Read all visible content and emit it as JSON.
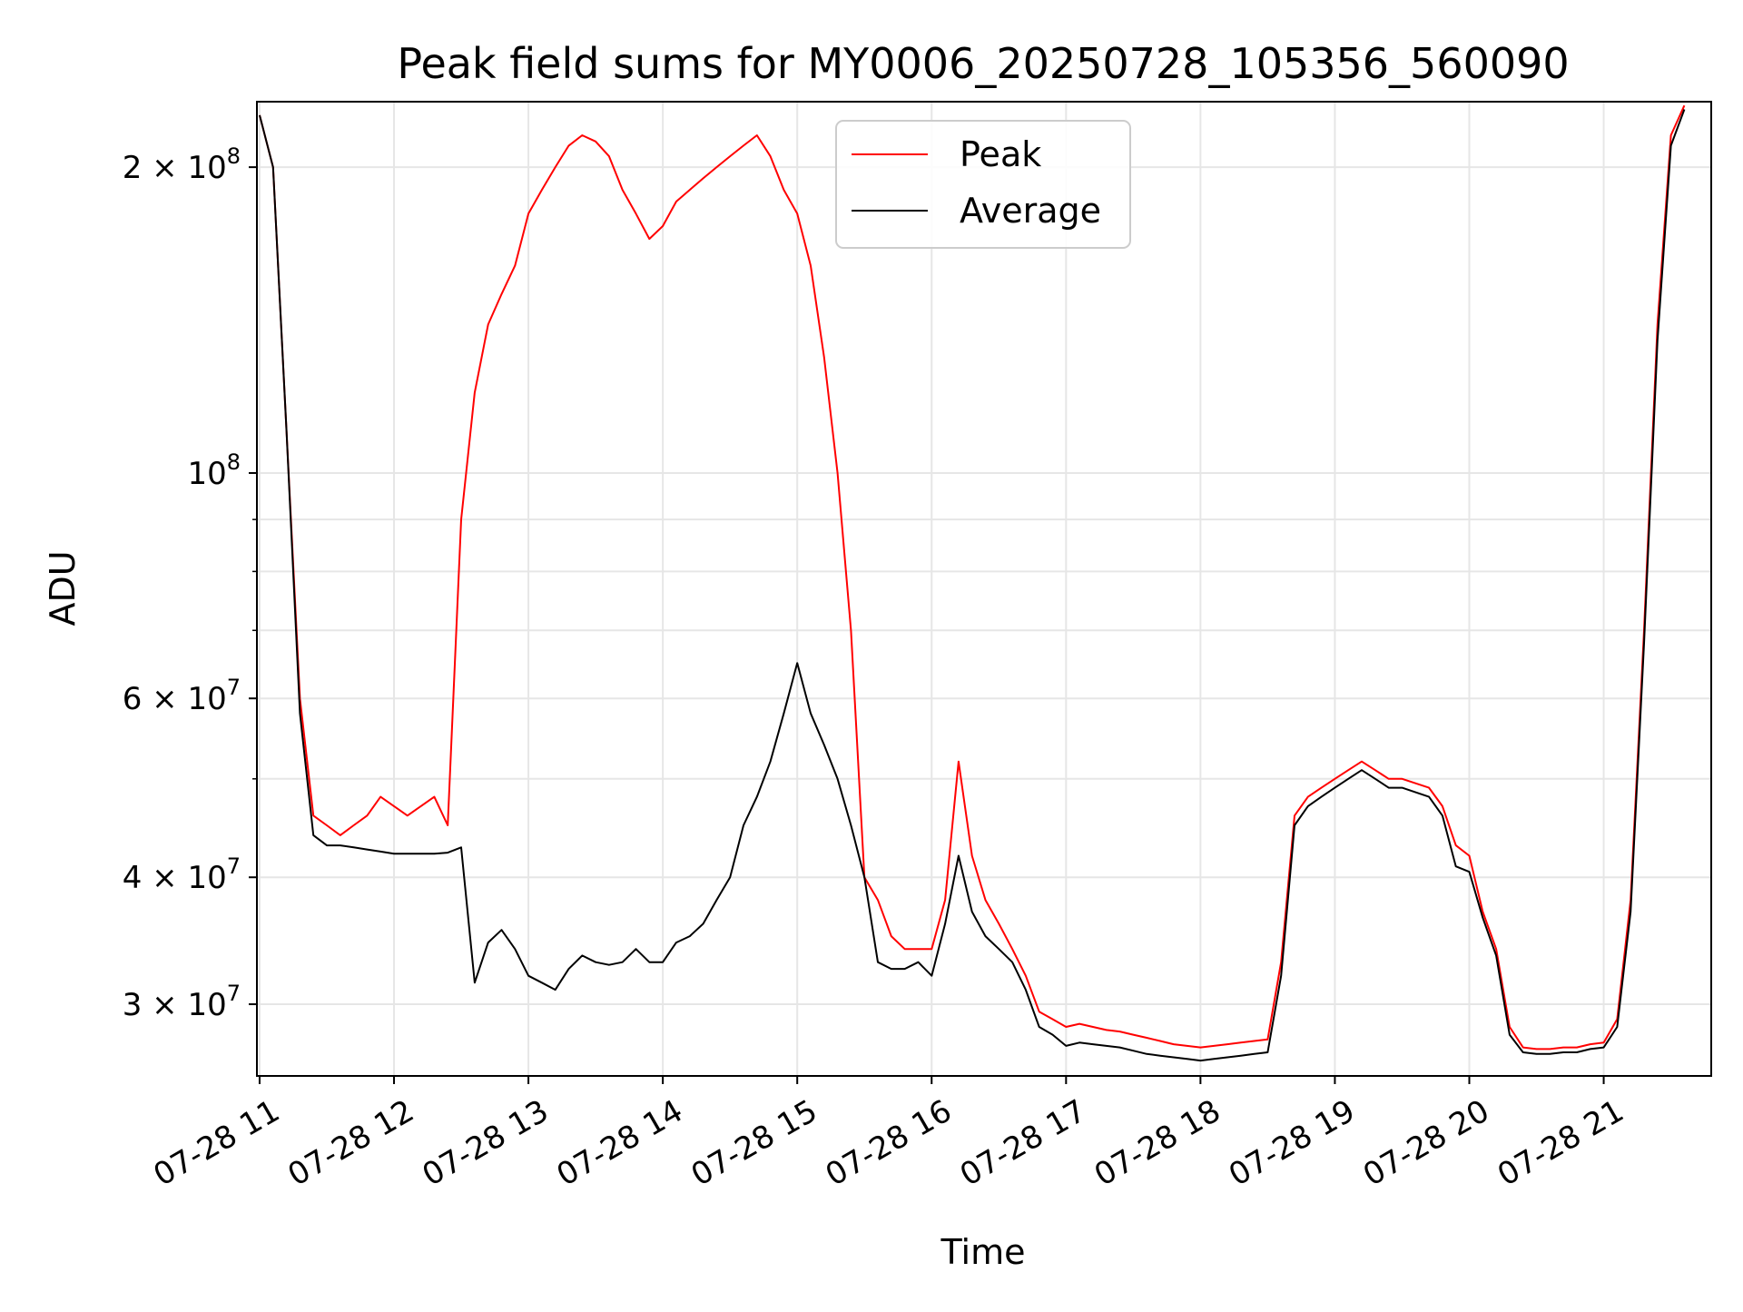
{
  "chart_data": {
    "type": "line",
    "title": "Peak field sums for MY0006_20250728_105356_560090",
    "xlabel": "Time",
    "ylabel": "ADU",
    "yscale": "log",
    "grid": true,
    "legend_position": "upper center",
    "xlim": [
      10.98,
      21.8
    ],
    "ylim": [
      25500000,
      232000000
    ],
    "x_ticks": [
      {
        "value": 11,
        "label": "07-28 11"
      },
      {
        "value": 12,
        "label": "07-28 12"
      },
      {
        "value": 13,
        "label": "07-28 13"
      },
      {
        "value": 14,
        "label": "07-28 14"
      },
      {
        "value": 15,
        "label": "07-28 15"
      },
      {
        "value": 16,
        "label": "07-28 16"
      },
      {
        "value": 17,
        "label": "07-28 17"
      },
      {
        "value": 18,
        "label": "07-28 18"
      },
      {
        "value": 19,
        "label": "07-28 19"
      },
      {
        "value": 20,
        "label": "07-28 20"
      },
      {
        "value": 21,
        "label": "07-28 21"
      }
    ],
    "y_ticks": [
      {
        "value": 30000000,
        "label": "3 × 10⁷",
        "mantissa": "3",
        "exp": "7"
      },
      {
        "value": 40000000,
        "label": "4 × 10⁷",
        "mantissa": "4",
        "exp": "7"
      },
      {
        "value": 60000000,
        "label": "6 × 10⁷",
        "mantissa": "6",
        "exp": "7"
      },
      {
        "value": 100000000,
        "label": "10⁸",
        "mantissa": "",
        "exp": "8"
      },
      {
        "value": 200000000,
        "label": "2 × 10⁸",
        "mantissa": "2",
        "exp": "8"
      }
    ],
    "y_minor_ticks": [
      50000000,
      70000000,
      80000000,
      90000000
    ],
    "series": [
      {
        "name": "Peak",
        "color": "#ff0000",
        "x": [
          11.0,
          11.1,
          11.2,
          11.3,
          11.4,
          11.5,
          11.6,
          11.7,
          11.8,
          11.9,
          12.0,
          12.1,
          12.2,
          12.3,
          12.4,
          12.5,
          12.6,
          12.7,
          12.8,
          12.9,
          13.0,
          13.1,
          13.2,
          13.3,
          13.4,
          13.5,
          13.6,
          13.7,
          13.8,
          13.9,
          14.0,
          14.1,
          14.2,
          14.3,
          14.4,
          14.5,
          14.6,
          14.7,
          14.8,
          14.9,
          15.0,
          15.1,
          15.2,
          15.3,
          15.4,
          15.5,
          15.6,
          15.7,
          15.8,
          15.9,
          16.0,
          16.1,
          16.2,
          16.3,
          16.4,
          16.5,
          16.6,
          16.7,
          16.8,
          16.9,
          17.0,
          17.1,
          17.2,
          17.3,
          17.4,
          17.5,
          17.6,
          17.7,
          17.8,
          17.9,
          18.0,
          18.1,
          18.2,
          18.3,
          18.4,
          18.5,
          18.6,
          18.7,
          18.8,
          18.9,
          19.0,
          19.1,
          19.2,
          19.3,
          19.4,
          19.5,
          19.6,
          19.7,
          19.8,
          19.9,
          20.0,
          20.1,
          20.2,
          20.3,
          20.4,
          20.5,
          20.6,
          20.7,
          20.8,
          20.9,
          21.0,
          21.1,
          21.2,
          21.3,
          21.4,
          21.5,
          21.6
        ],
        "values": [
          225000000,
          200000000,
          110000000,
          60000000,
          46000000,
          45000000,
          44000000,
          45000000,
          46000000,
          48000000,
          47000000,
          46000000,
          47000000,
          48000000,
          45000000,
          90000000,
          120000000,
          140000000,
          150000000,
          160000000,
          180000000,
          190000000,
          200000000,
          210000000,
          215000000,
          212000000,
          205000000,
          190000000,
          180000000,
          170000000,
          175000000,
          185000000,
          190000000,
          195000000,
          200000000,
          205000000,
          210000000,
          215000000,
          205000000,
          190000000,
          180000000,
          160000000,
          130000000,
          100000000,
          70000000,
          40000000,
          38000000,
          35000000,
          34000000,
          34000000,
          34000000,
          38000000,
          52000000,
          42000000,
          38000000,
          36000000,
          34000000,
          32000000,
          29500000,
          29000000,
          28500000,
          28700000,
          28500000,
          28300000,
          28200000,
          28000000,
          27800000,
          27600000,
          27400000,
          27300000,
          27200000,
          27300000,
          27400000,
          27500000,
          27600000,
          27700000,
          33000000,
          46000000,
          48000000,
          49000000,
          50000000,
          51000000,
          52000000,
          51000000,
          50000000,
          50000000,
          49500000,
          49000000,
          47000000,
          43000000,
          42000000,
          37000000,
          34000000,
          28500000,
          27200000,
          27100000,
          27100000,
          27200000,
          27200000,
          27400000,
          27500000,
          29000000,
          38000000,
          70000000,
          140000000,
          215000000,
          230000000
        ]
      },
      {
        "name": "Average",
        "color": "#000000",
        "x": [
          11.0,
          11.1,
          11.2,
          11.3,
          11.4,
          11.5,
          11.6,
          11.7,
          11.8,
          11.9,
          12.0,
          12.1,
          12.2,
          12.3,
          12.4,
          12.5,
          12.6,
          12.7,
          12.8,
          12.9,
          13.0,
          13.1,
          13.2,
          13.3,
          13.4,
          13.5,
          13.6,
          13.7,
          13.8,
          13.9,
          14.0,
          14.1,
          14.2,
          14.3,
          14.4,
          14.5,
          14.6,
          14.7,
          14.8,
          14.9,
          15.0,
          15.1,
          15.2,
          15.3,
          15.4,
          15.5,
          15.6,
          15.7,
          15.8,
          15.9,
          16.0,
          16.1,
          16.2,
          16.3,
          16.4,
          16.5,
          16.6,
          16.7,
          16.8,
          16.9,
          17.0,
          17.1,
          17.2,
          17.3,
          17.4,
          17.5,
          17.6,
          17.7,
          17.8,
          17.9,
          18.0,
          18.1,
          18.2,
          18.3,
          18.4,
          18.5,
          18.6,
          18.7,
          18.8,
          18.9,
          19.0,
          19.1,
          19.2,
          19.3,
          19.4,
          19.5,
          19.6,
          19.7,
          19.8,
          19.9,
          20.0,
          20.1,
          20.2,
          20.3,
          20.4,
          20.5,
          20.6,
          20.7,
          20.8,
          20.9,
          21.0,
          21.1,
          21.2,
          21.3,
          21.4,
          21.5,
          21.6
        ],
        "values": [
          225000000,
          200000000,
          110000000,
          58000000,
          44000000,
          43000000,
          43000000,
          42800000,
          42600000,
          42400000,
          42200000,
          42200000,
          42200000,
          42200000,
          42300000,
          42800000,
          31500000,
          34500000,
          35500000,
          34000000,
          32000000,
          31500000,
          31000000,
          32500000,
          33500000,
          33000000,
          32800000,
          33000000,
          34000000,
          33000000,
          33000000,
          34500000,
          35000000,
          36000000,
          38000000,
          40000000,
          45000000,
          48000000,
          52000000,
          58000000,
          65000000,
          58000000,
          54000000,
          50000000,
          45000000,
          40000000,
          33000000,
          32500000,
          32500000,
          33000000,
          32000000,
          36000000,
          42000000,
          37000000,
          35000000,
          34000000,
          33000000,
          31000000,
          28500000,
          28000000,
          27300000,
          27500000,
          27400000,
          27300000,
          27200000,
          27000000,
          26800000,
          26700000,
          26600000,
          26500000,
          26400000,
          26500000,
          26600000,
          26700000,
          26800000,
          26900000,
          32000000,
          45000000,
          47000000,
          48000000,
          49000000,
          50000000,
          51000000,
          50000000,
          49000000,
          49000000,
          48500000,
          48000000,
          46000000,
          41000000,
          40500000,
          36500000,
          33500000,
          28000000,
          26900000,
          26800000,
          26800000,
          26900000,
          26900000,
          27100000,
          27200000,
          28500000,
          37000000,
          68000000,
          135000000,
          210000000,
          228000000
        ]
      }
    ]
  }
}
